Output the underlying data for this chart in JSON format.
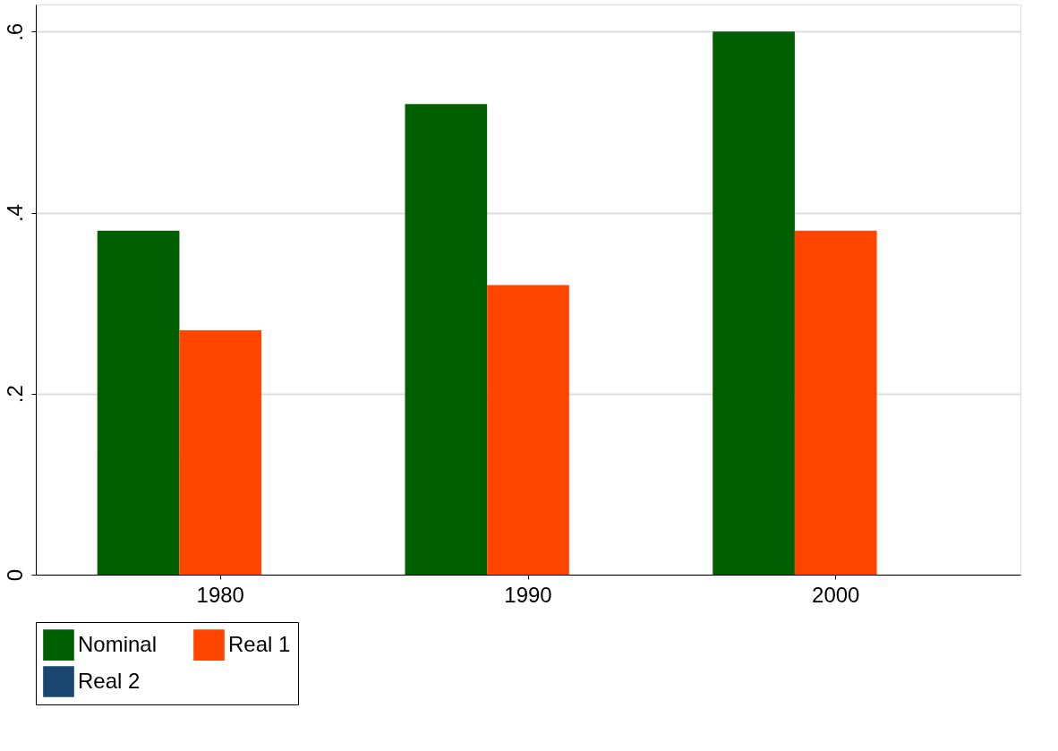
{
  "chart_data": {
    "type": "bar",
    "categories": [
      "1980",
      "1990",
      "2000"
    ],
    "series": [
      {
        "name": "Nominal",
        "color": "#005f00",
        "values": [
          0.38,
          0.52,
          0.6
        ]
      },
      {
        "name": "Real 1",
        "color": "#ff4500",
        "values": [
          0.27,
          0.32,
          0.38
        ]
      },
      {
        "name": "Real 2",
        "color": "#1a476f",
        "values": [
          null,
          null,
          null
        ]
      }
    ],
    "ylim": [
      0,
      0.63
    ],
    "yticks": [
      {
        "value": 0,
        "label": "0"
      },
      {
        "value": 0.2,
        "label": ".2"
      },
      {
        "value": 0.4,
        "label": ".4"
      },
      {
        "value": 0.6,
        "label": ".6"
      }
    ],
    "grid": "y",
    "legend": "bottom"
  }
}
